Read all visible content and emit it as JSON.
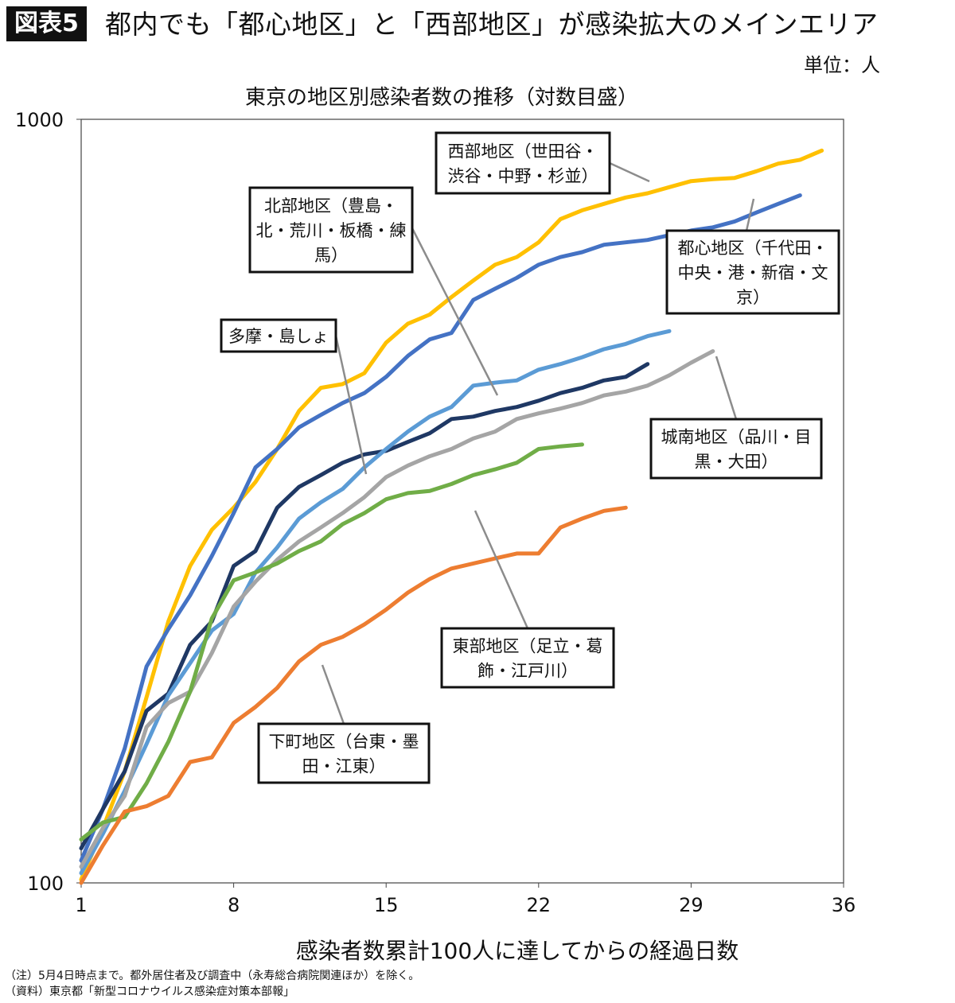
{
  "header": {
    "badge": "図表5",
    "title": "都内でも「都心地区」と「西部地区」が感染拡大のメインエリア"
  },
  "unit": "単位：人",
  "footnotes": [
    "（注）5月4日時点まで。都外居住者及び調査中（永寿総合病院関連ほか）を除く。",
    "（資料）東京都「新型コロナウイルス感染症対策本部報」"
  ],
  "chart_data": {
    "type": "line",
    "title": "東京の地区別感染者数の推移（対数目盛）",
    "xlabel": "感染者数累計100人に達してからの経過日数",
    "ylabel": "",
    "y_scale": "log",
    "xlim": [
      1,
      36
    ],
    "ylim": [
      100,
      1000
    ],
    "x_ticks": [
      1,
      8,
      15,
      22,
      29,
      36
    ],
    "y_ticks": [
      100,
      1000
    ],
    "grid": false,
    "legend": "callout-boxes",
    "series": [
      {
        "name": "西部地区（世田谷・渋谷・中野・杉並）",
        "color": "#FFC000",
        "values": [
          101,
          118,
          140,
          175,
          220,
          260,
          290,
          310,
          335,
          370,
          415,
          445,
          450,
          465,
          510,
          540,
          555,
          585,
          615,
          645,
          660,
          690,
          740,
          760,
          775,
          790,
          800,
          815,
          830,
          835,
          838,
          855,
          875,
          885,
          910
        ]
      },
      {
        "name": "都心地区（千代田・中央・港・新宿・文京）",
        "color": "#4472C4",
        "values": [
          107,
          125,
          150,
          192,
          215,
          238,
          268,
          305,
          350,
          370,
          395,
          410,
          425,
          438,
          460,
          490,
          515,
          525,
          580,
          600,
          620,
          645,
          660,
          670,
          685,
          690,
          695,
          705,
          715,
          722,
          735,
          755,
          775,
          795
        ]
      },
      {
        "name": "北部地区（豊島・北・荒川・板橋・練馬）",
        "color": "#1F3864",
        "values": [
          111,
          125,
          140,
          168,
          177,
          205,
          220,
          260,
          272,
          310,
          330,
          342,
          355,
          364,
          368,
          378,
          388,
          405,
          408,
          415,
          420,
          428,
          438,
          445,
          455,
          460,
          478
        ]
      },
      {
        "name": "多摩・島しょ",
        "color": "#5B9BD5",
        "values": [
          103,
          116,
          132,
          152,
          176,
          194,
          214,
          225,
          255,
          275,
          300,
          315,
          328,
          350,
          370,
          390,
          408,
          420,
          448,
          452,
          455,
          470,
          478,
          488,
          500,
          508,
          520,
          528
        ]
      },
      {
        "name": "城南地区（品川・目黒・大田）",
        "color": "#A5A5A5",
        "values": [
          105,
          118,
          130,
          160,
          172,
          178,
          200,
          230,
          248,
          265,
          280,
          292,
          305,
          320,
          340,
          352,
          362,
          370,
          382,
          390,
          405,
          412,
          418,
          425,
          435,
          440,
          448,
          462,
          480,
          497
        ]
      },
      {
        "name": "東部地区（足立・葛飾・江戸川）",
        "color": "#70AD47",
        "values": [
          114,
          120,
          122,
          135,
          153,
          178,
          222,
          249,
          255,
          262,
          272,
          280,
          295,
          305,
          318,
          324,
          326,
          333,
          342,
          348,
          355,
          370,
          373,
          375
        ]
      },
      {
        "name": "下町地区（台東・墨田・江東）",
        "color": "#ED7D31",
        "values": [
          100,
          112,
          124,
          126,
          130,
          144,
          146,
          162,
          170,
          180,
          195,
          205,
          210,
          218,
          228,
          240,
          250,
          258,
          262,
          266,
          270,
          270,
          292,
          300,
          307,
          310
        ]
      }
    ],
    "callouts": [
      {
        "series": 0,
        "lines": [
          "西部地区（世田谷・",
          "渋谷・中野・杉並）"
        ]
      },
      {
        "series": 1,
        "lines": [
          "都心地区（千代田・",
          "中央・港・新宿・文",
          "京）"
        ]
      },
      {
        "series": 2,
        "lines": [
          "北部地区（豊島・",
          "北・荒川・板橋・練",
          "馬）"
        ]
      },
      {
        "series": 3,
        "lines": [
          "多摩・島しょ"
        ]
      },
      {
        "series": 4,
        "lines": [
          "城南地区（品川・目",
          "黒・大田）"
        ]
      },
      {
        "series": 5,
        "lines": [
          "東部地区（足立・葛",
          "飾・江戸川）"
        ]
      },
      {
        "series": 6,
        "lines": [
          "下町地区（台東・墨",
          "田・江東）"
        ]
      }
    ]
  }
}
